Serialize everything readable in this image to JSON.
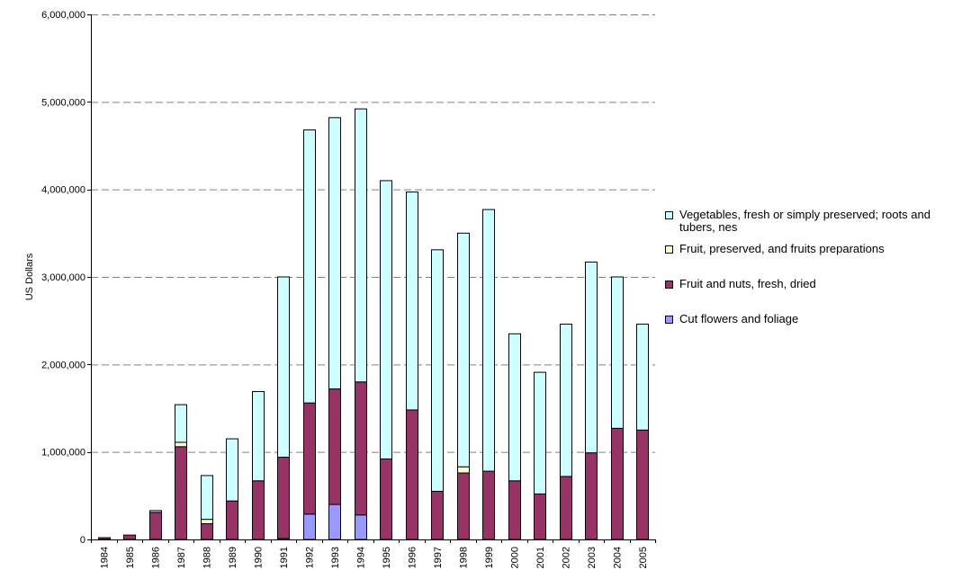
{
  "chart_data": {
    "type": "bar",
    "stacked": true,
    "title": "",
    "xlabel": "",
    "ylabel": "US Dollars",
    "ylim": [
      0,
      6000000
    ],
    "yticks": [
      0,
      1000000,
      2000000,
      3000000,
      4000000,
      5000000,
      6000000
    ],
    "ytick_labels": [
      "0",
      "1,000,000",
      "2,000,000",
      "3,000,000",
      "4,000,000",
      "5,000,000",
      "6,000,000"
    ],
    "grid": "horizontal dashed",
    "legend_position": "right",
    "categories": [
      "1984",
      "1985",
      "1986",
      "1987",
      "1988",
      "1989",
      "1990",
      "1991",
      "1992",
      "1993",
      "1994",
      "1995",
      "1996",
      "1997",
      "1998",
      "1999",
      "2000",
      "2001",
      "2002",
      "2003",
      "2004",
      "2005"
    ],
    "series": [
      {
        "name": "Cut flowers and foliage",
        "color": "#9999ff",
        "values": [
          0,
          0,
          0,
          0,
          0,
          0,
          0,
          10000,
          290000,
          400000,
          280000,
          0,
          0,
          0,
          0,
          0,
          0,
          0,
          0,
          0,
          0,
          0
        ]
      },
      {
        "name": "Fruit and nuts, fresh, dried",
        "color": "#993366",
        "values": [
          20000,
          50000,
          310000,
          1060000,
          180000,
          440000,
          670000,
          930000,
          1270000,
          1320000,
          1520000,
          920000,
          1480000,
          550000,
          760000,
          780000,
          670000,
          520000,
          720000,
          990000,
          1270000,
          1250000
        ]
      },
      {
        "name": "Fruit, preserved, and fruits preparations",
        "color": "#ffffcc",
        "values": [
          0,
          0,
          0,
          50000,
          50000,
          0,
          0,
          0,
          0,
          0,
          0,
          0,
          0,
          0,
          70000,
          0,
          0,
          0,
          0,
          0,
          0,
          0
        ]
      },
      {
        "name": "Vegetables, fresh or simply preserved; roots and tubers, nes",
        "color": "#ccffff",
        "values": [
          0,
          0,
          20000,
          430000,
          500000,
          710000,
          1020000,
          2060000,
          3120000,
          3100000,
          3120000,
          3180000,
          2490000,
          2760000,
          2670000,
          2990000,
          1680000,
          1390000,
          1740000,
          2180000,
          1730000,
          1210000
        ]
      }
    ]
  },
  "legend": {
    "items": [
      {
        "label": "Vegetables, fresh or simply preserved; roots and tubers, nes",
        "color": "#ccffff"
      },
      {
        "label": "Fruit, preserved, and fruits preparations",
        "color": "#ffffcc"
      },
      {
        "label": "Fruit and nuts, fresh, dried",
        "color": "#993366"
      },
      {
        "label": "Cut flowers and foliage",
        "color": "#9999ff"
      }
    ]
  }
}
